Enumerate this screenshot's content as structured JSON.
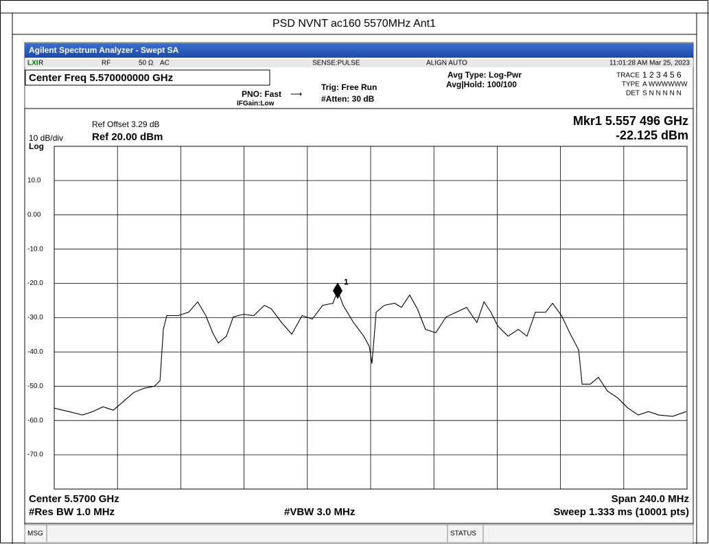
{
  "title": "PSD NVNT ac160 5570MHz Ant1",
  "window": {
    "title": "Agilent Spectrum Analyzer - Swept SA"
  },
  "status_row": {
    "mode": "R",
    "rf": "RF",
    "impedance": "50 Ω",
    "coupling": "AC",
    "sense": "SENSE:PULSE",
    "align": "ALIGN AUTO",
    "time": "11:01:28 AM Mar 25, 2023"
  },
  "settings": {
    "center": "Center Freq 5.570000000 GHz",
    "pno": "PNO: Fast",
    "ifgain": "IFGain:Low",
    "trig": "Trig: Free Run",
    "atten": "#Atten: 30 dB",
    "avg_type": "Avg Type: Log-Pwr",
    "avg_hold": "Avg|Hold: 100/100",
    "trace_label": "TRACE",
    "trace_values": "1 2 3 4 5 6",
    "type_label": "TYPE",
    "type_values": "A WWWWWW",
    "det_label": "DET",
    "det_values": "S N N N N N"
  },
  "footer": {
    "center": "Center 5.5700 GHz",
    "rbw": "#Res BW 1.0 MHz",
    "vbw": "#VBW 3.0 MHz",
    "span": "Span 240.0 MHz",
    "sweep": "Sweep  1.333 ms (10001 pts)"
  },
  "statusbar": {
    "msg": "MSG",
    "status": "STATUS"
  },
  "chart_data": {
    "type": "line",
    "ref_offset": "Ref Offset 3.29 dB",
    "scale": "10 dB/div",
    "ref_level": "Ref 20.00 dBm",
    "scale_type": "Log",
    "xlim": [
      5.45,
      5.69
    ],
    "ylim": [
      -80,
      20
    ],
    "yticks": [
      {
        "value": 10,
        "label": "10.0"
      },
      {
        "value": 0,
        "label": "0.00"
      },
      {
        "value": -10,
        "label": "-10.0"
      },
      {
        "value": -20,
        "label": "-20.0"
      },
      {
        "value": -30,
        "label": "-30.0"
      },
      {
        "value": -40,
        "label": "-40.0"
      },
      {
        "value": -50,
        "label": "-50.0"
      },
      {
        "value": -60,
        "label": "-60.0"
      },
      {
        "value": -70,
        "label": "-70.0"
      }
    ],
    "grid": true,
    "color": "#000000",
    "x": [
      5.45,
      5.4555,
      5.4607,
      5.4646,
      5.4685,
      5.4724,
      5.4763,
      5.4802,
      5.4841,
      5.488,
      5.4901,
      5.4914,
      5.4927,
      5.4971,
      5.501,
      5.5044,
      5.5075,
      5.5101,
      5.5122,
      5.5153,
      5.5179,
      5.5218,
      5.5257,
      5.5297,
      5.5323,
      5.5362,
      5.5401,
      5.544,
      5.5479,
      5.5518,
      5.5557,
      5.5575,
      5.5596,
      5.5635,
      5.5674,
      5.5695,
      5.5705,
      5.5721,
      5.5752,
      5.5791,
      5.5817,
      5.5848,
      5.5877,
      5.5908,
      5.5947,
      5.5986,
      5.6025,
      5.6064,
      5.6103,
      5.613,
      5.6156,
      5.6182,
      5.6221,
      5.626,
      5.6293,
      5.6325,
      5.6364,
      5.639,
      5.6424,
      5.6455,
      5.6489,
      5.6502,
      5.6533,
      5.6564,
      5.6598,
      5.6637,
      5.6676,
      5.6715,
      5.6754,
      5.6793,
      5.6845,
      5.6897
    ],
    "values": [
      -56.4,
      -57.4,
      -58.4,
      -57.4,
      -56,
      -57,
      -54.4,
      -51.8,
      -50.6,
      -50,
      -48.4,
      -33.4,
      -29.4,
      -29.4,
      -28.4,
      -25.4,
      -29.4,
      -34.4,
      -37.4,
      -35.4,
      -29.8,
      -29,
      -29.4,
      -26.4,
      -27.4,
      -31.4,
      -34.8,
      -29.4,
      -30.4,
      -26.4,
      -25.8,
      -22.1,
      -26.4,
      -31.4,
      -35.4,
      -38.4,
      -43.4,
      -28.4,
      -26.4,
      -25.8,
      -27,
      -23.4,
      -27.4,
      -33.4,
      -34.4,
      -29.8,
      -28.4,
      -27,
      -31.4,
      -25.4,
      -28.4,
      -32.4,
      -35.4,
      -33.4,
      -35.4,
      -28.4,
      -28.4,
      -25.8,
      -29.4,
      -34.4,
      -39.4,
      -49.4,
      -49.4,
      -47.4,
      -51.4,
      -53.4,
      -56.4,
      -58.4,
      -57.4,
      -58.4,
      -58.8,
      -57.4
    ],
    "marker": {
      "label": "1",
      "x": 5.557496,
      "value": -22.125,
      "readout_freq": "Mkr1 5.557 496 GHz",
      "readout_level": "-22.125 dBm"
    }
  }
}
